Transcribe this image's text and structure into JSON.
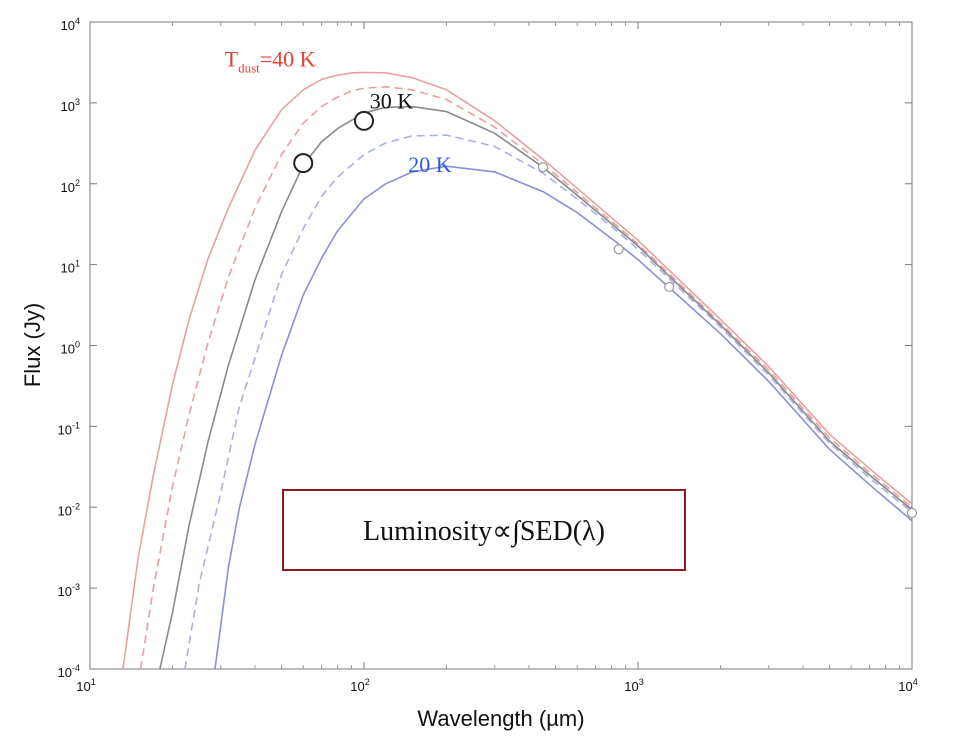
{
  "chart_data": {
    "type": "line",
    "x_scale": "log",
    "y_scale": "log",
    "xlim": [
      10,
      10000
    ],
    "ylim": [
      0.0001,
      10000
    ],
    "xlabel": "Wavelength (µm)",
    "ylabel": "Flux (Jy)",
    "x_ticks": [
      {
        "value": 10,
        "base": "10",
        "exp": "1"
      },
      {
        "value": 100,
        "base": "10",
        "exp": "2"
      },
      {
        "value": 1000,
        "base": "10",
        "exp": "3"
      },
      {
        "value": 10000,
        "base": "10",
        "exp": "4"
      }
    ],
    "y_ticks": [
      {
        "value": 0.0001,
        "base": "10",
        "exp": "-4"
      },
      {
        "value": 0.001,
        "base": "10",
        "exp": "-3"
      },
      {
        "value": 0.01,
        "base": "10",
        "exp": "-2"
      },
      {
        "value": 0.1,
        "base": "10",
        "exp": "-1"
      },
      {
        "value": 1,
        "base": "10",
        "exp": "0"
      },
      {
        "value": 10,
        "base": "10",
        "exp": "1"
      },
      {
        "value": 100,
        "base": "10",
        "exp": "2"
      },
      {
        "value": 1000,
        "base": "10",
        "exp": "3"
      },
      {
        "value": 10000,
        "base": "10",
        "exp": "4"
      }
    ],
    "grid": false,
    "series": [
      {
        "color": "#e8a0a0",
        "dash": "solid",
        "x": [
          13.2,
          15,
          17,
          20,
          23,
          27,
          32,
          40,
          50,
          60,
          70,
          80,
          90,
          100,
          120,
          150,
          200,
          300,
          450,
          600,
          850,
          1000,
          1300,
          2000,
          3000,
          5000,
          7000,
          10000
        ],
        "y": [
          0.0001,
          0.0024,
          0.024,
          0.33,
          2.1,
          12,
          50,
          260,
          820,
          1450,
          1950,
          2200,
          2350,
          2380,
          2350,
          2050,
          1450,
          600,
          200,
          88,
          32,
          20,
          8.5,
          2.1,
          0.55,
          0.08,
          0.03,
          0.011
        ]
      },
      {
        "color": "#e8a0a0",
        "dash": "dashed",
        "x": [
          15.3,
          17,
          20,
          23,
          27,
          32,
          40,
          50,
          60,
          70,
          80,
          90,
          100,
          120,
          150,
          200,
          300,
          450,
          600,
          850,
          1000,
          1300,
          2000,
          3000,
          5000,
          7000,
          10000
        ],
        "y": [
          0.0001,
          0.00095,
          0.018,
          0.14,
          1.1,
          7,
          50,
          230,
          560,
          900,
          1180,
          1400,
          1520,
          1580,
          1450,
          1100,
          500,
          175,
          78,
          29,
          18,
          7.7,
          1.9,
          0.5,
          0.072,
          0.027,
          0.01
        ]
      },
      {
        "color": "#8a8a8a",
        "dash": "solid",
        "x": [
          18,
          20,
          23,
          27,
          32,
          40,
          50,
          60,
          70,
          80,
          100,
          120,
          150,
          200,
          300,
          450,
          600,
          850,
          1000,
          1300,
          2000,
          3000,
          5000,
          7000,
          10000
        ],
        "y": [
          0.0001,
          0.0005,
          0.006,
          0.066,
          0.57,
          6.5,
          45,
          170,
          330,
          480,
          750,
          880,
          900,
          780,
          420,
          160,
          72,
          27,
          17,
          7.2,
          1.8,
          0.46,
          0.066,
          0.025,
          0.0093
        ]
      },
      {
        "color": "#aab0e0",
        "dash": "dashed",
        "x": [
          22.2,
          25,
          30,
          35,
          40,
          50,
          60,
          70,
          80,
          100,
          120,
          150,
          200,
          300,
          450,
          600,
          850,
          1000,
          1300,
          2000,
          3000,
          5000,
          7000,
          10000
        ],
        "y": [
          0.0001,
          0.0011,
          0.015,
          0.17,
          0.7,
          7.5,
          28,
          70,
          120,
          230,
          320,
          390,
          400,
          290,
          135,
          65,
          25,
          15.5,
          6.7,
          1.7,
          0.43,
          0.062,
          0.023,
          0.0087
        ]
      },
      {
        "color": "#8a90d4",
        "dash": "solid",
        "x": [
          28.6,
          32,
          35,
          40,
          50,
          60,
          70,
          80,
          100,
          120,
          150,
          200,
          300,
          450,
          600,
          850,
          1000,
          1300,
          2000,
          3000,
          5000,
          7000,
          10000
        ],
        "y": [
          0.0001,
          0.0018,
          0.0095,
          0.06,
          0.75,
          4.2,
          12,
          26,
          65,
          100,
          140,
          165,
          140,
          80,
          44,
          18,
          11.5,
          5.2,
          1.4,
          0.36,
          0.052,
          0.019,
          0.0068
        ]
      }
    ],
    "markers": [
      {
        "x": 60,
        "y": 180,
        "size": "large"
      },
      {
        "x": 100,
        "y": 600,
        "size": "large"
      },
      {
        "x": 450,
        "y": 160,
        "size": "small"
      },
      {
        "x": 850,
        "y": 15.5,
        "size": "small"
      },
      {
        "x": 1300,
        "y": 5.3,
        "size": "small"
      },
      {
        "x": 10000,
        "y": 0.0085,
        "size": "small"
      }
    ],
    "annotations": [
      {
        "name": "label-40k",
        "x": 31,
        "y": 2800,
        "color": "#e8402e",
        "main": "T",
        "sub": "dust",
        "rest": "=40 K"
      },
      {
        "name": "label-30k",
        "x": 105,
        "y": 850,
        "color": "#111111",
        "main": "30 K",
        "sub": "",
        "rest": ""
      },
      {
        "name": "label-20k",
        "x": 145,
        "y": 140,
        "color": "#2f5ae0",
        "main": "20 K",
        "sub": "",
        "rest": ""
      }
    ],
    "formula": {
      "text": "Luminosity∝∫SED(λ)",
      "border_color": "#8b1a1a"
    }
  }
}
